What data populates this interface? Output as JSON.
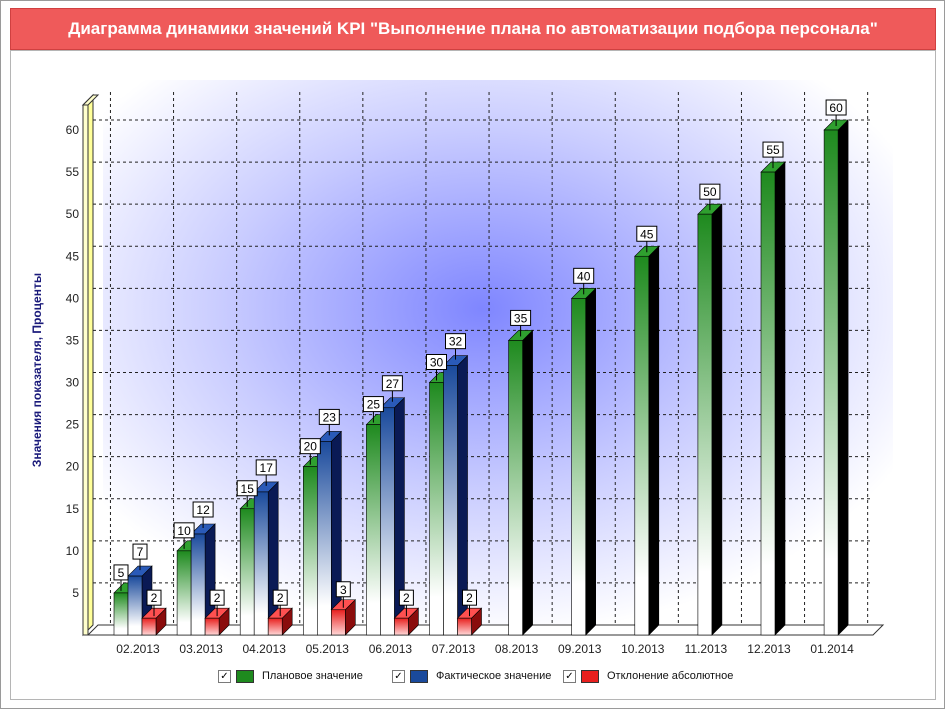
{
  "window": {
    "title": "Диаграмма динамики значений KPI \"Выполнение плана по автоматизации подбора персонала\""
  },
  "colors": {
    "title_bg": "#ef5a5a",
    "plan": "#1e8a1e",
    "fact": "#1a4a9c",
    "deviation": "#e8201e",
    "y_wall": "#ffff99"
  },
  "legend": {
    "items": [
      {
        "label": "Плановое значение",
        "color": "#1e8a1e",
        "checked": "✓"
      },
      {
        "label": "Фактическое значение",
        "color": "#1a4a9c",
        "checked": "✓"
      },
      {
        "label": "Отклонение абсолютное",
        "color": "#e8201e",
        "checked": "✓"
      }
    ]
  },
  "chart_data": {
    "type": "bar",
    "title": "Диаграмма динамики значений KPI \"Выполнение плана по автоматизации подбора персонала\"",
    "ylabel": "Значения показателя, Проценты",
    "xlabel": "",
    "ylim": [
      0,
      60
    ],
    "yticks": [
      5,
      10,
      15,
      20,
      25,
      30,
      35,
      40,
      45,
      50,
      55,
      60
    ],
    "grid": true,
    "legend_position": "bottom",
    "categories": [
      "02.2013",
      "03.2013",
      "04.2013",
      "05.2013",
      "06.2013",
      "07.2013",
      "08.2013",
      "09.2013",
      "10.2013",
      "11.2013",
      "12.2013",
      "01.2014"
    ],
    "series": [
      {
        "name": "Плановое значение",
        "values": [
          5,
          10,
          15,
          20,
          25,
          30,
          35,
          40,
          45,
          50,
          55,
          60
        ]
      },
      {
        "name": "Фактическое значение",
        "values": [
          7,
          12,
          17,
          23,
          27,
          32,
          null,
          null,
          null,
          null,
          null,
          null
        ]
      },
      {
        "name": "Отклонение абсолютное",
        "values": [
          2,
          2,
          2,
          3,
          2,
          2,
          null,
          null,
          null,
          null,
          null,
          null
        ]
      }
    ]
  }
}
